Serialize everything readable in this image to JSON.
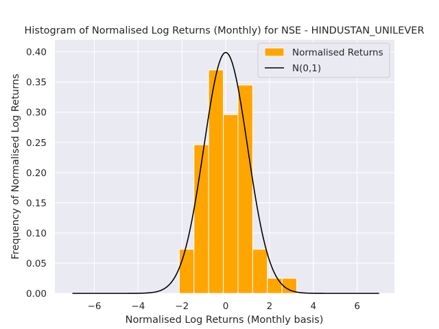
{
  "chart_data": {
    "type": "bar",
    "title": "Histogram of Normalised Log Returns (Monthly) for NSE - HINDUSTAN_UNILEVER",
    "xlabel": "Normalised Log Returns (Monthly basis)",
    "ylabel": "Frequency of Normalised Log Returns",
    "xlim": [
      -7.8,
      7.7
    ],
    "ylim": [
      0,
      0.42
    ],
    "xticks": [
      -6,
      -4,
      -2,
      0,
      2,
      4,
      6
    ],
    "xtick_labels": [
      "−6",
      "−4",
      "−2",
      "0",
      "2",
      "4",
      "6"
    ],
    "yticks": [
      0.0,
      0.05,
      0.1,
      0.15,
      0.2,
      0.25,
      0.3,
      0.35,
      0.4
    ],
    "ytick_labels": [
      "0.00",
      "0.05",
      "0.10",
      "0.15",
      "0.20",
      "0.25",
      "0.30",
      "0.35",
      "0.40"
    ],
    "grid": true,
    "legend_position": "top-right",
    "bins": [
      {
        "x0": -2.12,
        "x1": -1.45,
        "value": 0.073
      },
      {
        "x0": -1.45,
        "x1": -0.78,
        "value": 0.246
      },
      {
        "x0": -0.78,
        "x1": -0.11,
        "value": 0.37
      },
      {
        "x0": -0.11,
        "x1": 0.56,
        "value": 0.296
      },
      {
        "x0": 0.56,
        "x1": 1.23,
        "value": 0.345
      },
      {
        "x0": 1.23,
        "x1": 1.9,
        "value": 0.073
      },
      {
        "x0": 1.9,
        "x1": 2.57,
        "value": 0.025
      },
      {
        "x0": 2.57,
        "x1": 3.24,
        "value": 0.025
      }
    ],
    "series": [
      {
        "name": "Normalised Returns",
        "kind": "histogram",
        "color": "#ffa500"
      },
      {
        "name": "N(0,1)",
        "kind": "line",
        "color": "#000000",
        "x_range": [
          -7,
          7
        ],
        "mean": 0,
        "std": 1
      }
    ],
    "colors": {
      "background": "#eaeaf2",
      "grid": "#ffffff",
      "bar_edge": "#ffffff"
    }
  }
}
